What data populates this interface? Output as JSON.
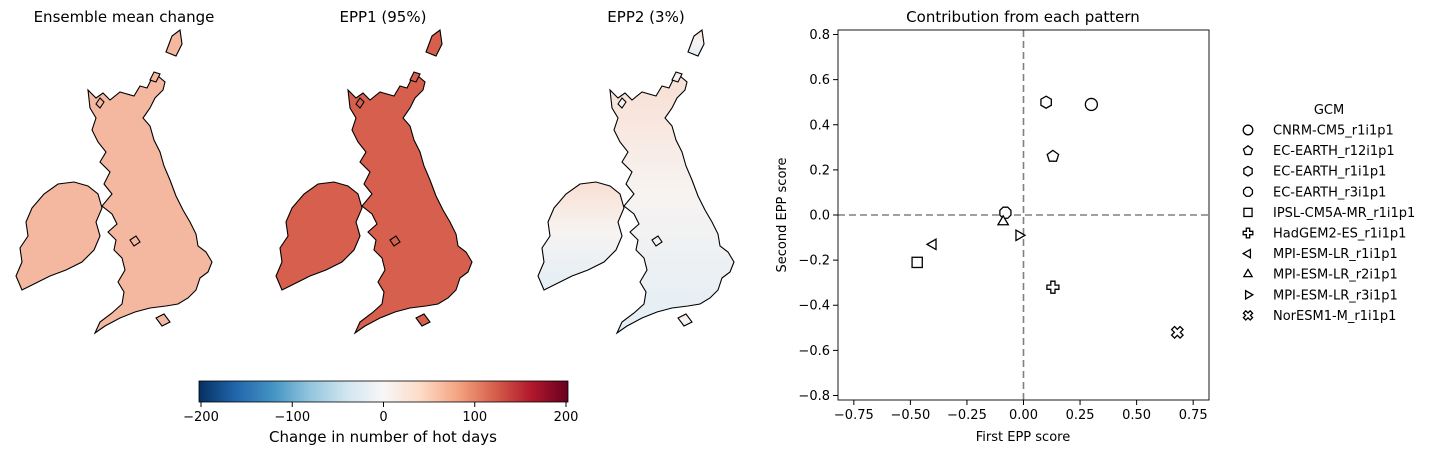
{
  "maps": {
    "panels": [
      {
        "title": "Ensemble mean change",
        "fill": "#f4b8a0"
      },
      {
        "title": "EPP1 (95%)",
        "fill": "#d6604d"
      },
      {
        "title": "EPP2 (3%)",
        "fill": "#f7ebe6"
      }
    ],
    "colorbar": {
      "label": "Change in number of hot days",
      "ticks": [
        "−200",
        "−100",
        "0",
        "100",
        "200"
      ],
      "colors": [
        "#053061",
        "#2166ac",
        "#4393c3",
        "#92c5de",
        "#d1e5f0",
        "#f7f7f7",
        "#fddbc7",
        "#f4a582",
        "#d6604d",
        "#b2182b",
        "#67001f"
      ]
    }
  },
  "chart_data": {
    "type": "scatter",
    "title": "Contribution from each pattern",
    "xlabel": "First EPP score",
    "ylabel": "Second EPP score",
    "xlim": [
      -0.82,
      0.82
    ],
    "ylim": [
      -0.82,
      0.82
    ],
    "xticks": [
      -0.75,
      -0.5,
      -0.25,
      0.0,
      0.25,
      0.5,
      0.75
    ],
    "xtick_labels": [
      "−0.75",
      "−0.50",
      "−0.25",
      "0.00",
      "0.25",
      "0.50",
      "0.75"
    ],
    "yticks": [
      -0.8,
      -0.6,
      -0.4,
      -0.2,
      0.0,
      0.2,
      0.4,
      0.6,
      0.8
    ],
    "ytick_labels": [
      "−0.8",
      "−0.6",
      "−0.4",
      "−0.2",
      "0.0",
      "0.2",
      "0.4",
      "0.6",
      "0.8"
    ],
    "reference_lines": {
      "x": 0.0,
      "y": 0.0,
      "style": "dashed",
      "color": "#808080"
    },
    "legend_title": "GCM",
    "legend_position": "outside right",
    "series": [
      {
        "name": "CNRM-CM5_r1i1p1",
        "marker": "circle",
        "x": 0.3,
        "y": 0.49
      },
      {
        "name": "EC-EARTH_r12i1p1",
        "marker": "pentagon",
        "x": 0.13,
        "y": 0.26
      },
      {
        "name": "EC-EARTH_r1i1p1",
        "marker": "hexagon",
        "x": 0.1,
        "y": 0.5
      },
      {
        "name": "EC-EARTH_r3i1p1",
        "marker": "octagon",
        "x": -0.08,
        "y": 0.01
      },
      {
        "name": "IPSL-CM5A-MR_r1i1p1",
        "marker": "square",
        "x": -0.47,
        "y": -0.21
      },
      {
        "name": "HadGEM2-ES_r1i1p1",
        "marker": "plus",
        "x": 0.13,
        "y": -0.32
      },
      {
        "name": "MPI-ESM-LR_r1i1p1",
        "marker": "triangle-left",
        "x": -0.4,
        "y": -0.13
      },
      {
        "name": "MPI-ESM-LR_r2i1p1",
        "marker": "triangle-up",
        "x": -0.09,
        "y": -0.03
      },
      {
        "name": "MPI-ESM-LR_r3i1p1",
        "marker": "triangle-right",
        "x": -0.02,
        "y": -0.09
      },
      {
        "name": "NorESM1-M_r1i1p1",
        "marker": "x-filled",
        "x": 0.68,
        "y": -0.52
      }
    ]
  }
}
